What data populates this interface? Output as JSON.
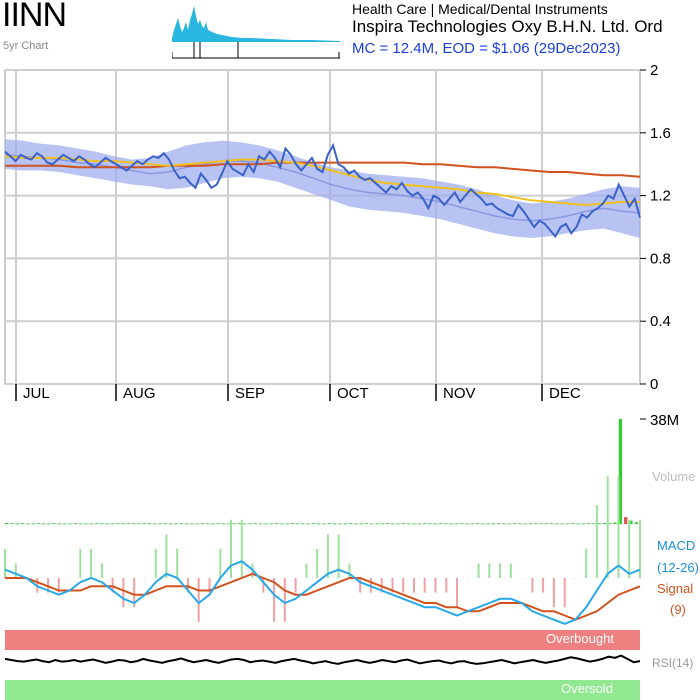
{
  "header": {
    "ticker": "IINN",
    "subtitle": "5yr Chart",
    "sector": "Health Care | Medical/Dental Instruments",
    "company": "Inspira Technologies Oxy B.H.N. Ltd. Ord",
    "mc_line": "MC = 12.4M, EOD = $1.06 (29Dec2023)"
  },
  "colors": {
    "price": "#3a62c8",
    "band_fill": "#9aaaf0",
    "ma_slow": "#d2521e",
    "ma_fast": "#f0c020",
    "ma_mid": "#8a98e0",
    "volume_bar": "#33cc33",
    "volume_down": "#e05050",
    "macd_line": "#27a8e8",
    "signal_line": "#d2521e",
    "hist_up": "#9ee09e",
    "hist_down": "#f0a0a0",
    "overbought": "#ee8080",
    "oversold": "#90e890",
    "rsi": "#000000"
  },
  "chart_data": [
    {
      "type": "line",
      "panel": "price",
      "x_labels": [
        "JUL",
        "AUG",
        "SEP",
        "OCT",
        "NOV",
        "DEC"
      ],
      "y_ticks": [
        "2",
        "1.6",
        "1.2",
        "0.8",
        "0.4",
        "0"
      ],
      "ylim": [
        0,
        2
      ],
      "grid": true,
      "series": [
        {
          "key": "price",
          "values": [
            1.48,
            1.45,
            1.42,
            1.46,
            1.44,
            1.43,
            1.47,
            1.45,
            1.41,
            1.4,
            1.43,
            1.46,
            1.44,
            1.42,
            1.45,
            1.43,
            1.4,
            1.38,
            1.41,
            1.44,
            1.42,
            1.4,
            1.38,
            1.36,
            1.39,
            1.42,
            1.4,
            1.43,
            1.45,
            1.44,
            1.47,
            1.43,
            1.36,
            1.31,
            1.32,
            1.28,
            1.25,
            1.34,
            1.3,
            1.25,
            1.27,
            1.34,
            1.42,
            1.37,
            1.35,
            1.33,
            1.4,
            1.35,
            1.45,
            1.43,
            1.48,
            1.44,
            1.38,
            1.5,
            1.46,
            1.4,
            1.36,
            1.4,
            1.44,
            1.37,
            1.35,
            1.46,
            1.52,
            1.4,
            1.38,
            1.34,
            1.36,
            1.32,
            1.3,
            1.31,
            1.28,
            1.25,
            1.22,
            1.26,
            1.24,
            1.28,
            1.23,
            1.2,
            1.22,
            1.18,
            1.12,
            1.2,
            1.18,
            1.14,
            1.18,
            1.22,
            1.16,
            1.2,
            1.24,
            1.21,
            1.18,
            1.14,
            1.15,
            1.12,
            1.1,
            1.08,
            1.07,
            1.14,
            1.1,
            1.05,
            1.0,
            1.04,
            1.02,
            0.98,
            0.94,
            1.0,
            1.02,
            0.96,
            1.0,
            1.08,
            1.06,
            1.1,
            1.12,
            1.15,
            1.2,
            1.18,
            1.27,
            1.2,
            1.13,
            1.18,
            1.06
          ]
        },
        {
          "key": "ma_slow",
          "values": [
            1.39,
            1.39,
            1.39,
            1.39,
            1.38,
            1.38,
            1.38,
            1.38,
            1.38,
            1.39,
            1.39,
            1.39,
            1.4,
            1.4,
            1.4,
            1.41,
            1.41,
            1.41,
            1.41,
            1.41,
            1.41,
            1.41,
            1.41,
            1.4,
            1.4,
            1.39,
            1.38,
            1.38,
            1.37,
            1.36,
            1.35,
            1.35,
            1.34,
            1.33,
            1.33,
            1.32
          ]
        },
        {
          "key": "ma_fast",
          "values": [
            1.45,
            1.44,
            1.44,
            1.44,
            1.43,
            1.42,
            1.42,
            1.41,
            1.4,
            1.39,
            1.4,
            1.41,
            1.42,
            1.43,
            1.43,
            1.42,
            1.41,
            1.39,
            1.36,
            1.33,
            1.3,
            1.28,
            1.27,
            1.26,
            1.25,
            1.24,
            1.22,
            1.21,
            1.19,
            1.17,
            1.16,
            1.15,
            1.14,
            1.15,
            1.16,
            1.16
          ]
        },
        {
          "key": "ma_mid",
          "values": [
            1.46,
            1.45,
            1.44,
            1.43,
            1.41,
            1.4,
            1.38,
            1.36,
            1.34,
            1.35,
            1.38,
            1.4,
            1.42,
            1.42,
            1.41,
            1.38,
            1.35,
            1.31,
            1.27,
            1.24,
            1.22,
            1.21,
            1.2,
            1.18,
            1.16,
            1.13,
            1.1,
            1.07,
            1.05,
            1.04,
            1.05,
            1.07,
            1.1,
            1.12,
            1.1,
            1.09
          ]
        },
        {
          "key": "band_upper",
          "values": [
            1.56,
            1.55,
            1.53,
            1.52,
            1.5,
            1.48,
            1.45,
            1.43,
            1.44,
            1.48,
            1.52,
            1.54,
            1.55,
            1.54,
            1.52,
            1.49,
            1.45,
            1.41,
            1.38,
            1.36,
            1.34,
            1.33,
            1.32,
            1.31,
            1.29,
            1.27,
            1.24,
            1.2,
            1.17,
            1.15,
            1.16,
            1.18,
            1.21,
            1.24,
            1.26,
            1.25
          ]
        },
        {
          "key": "band_lower",
          "values": [
            1.37,
            1.36,
            1.36,
            1.35,
            1.33,
            1.31,
            1.29,
            1.27,
            1.26,
            1.24,
            1.25,
            1.28,
            1.31,
            1.32,
            1.31,
            1.29,
            1.25,
            1.21,
            1.17,
            1.13,
            1.11,
            1.1,
            1.09,
            1.07,
            1.05,
            1.02,
            0.99,
            0.96,
            0.94,
            0.93,
            0.94,
            0.96,
            0.98,
            0.99,
            0.96,
            0.93
          ]
        }
      ]
    },
    {
      "type": "bar",
      "panel": "volume",
      "y_tick": "38M",
      "side_label": "Volume",
      "ylim": [
        0,
        38
      ],
      "values": [
        0.4,
        0.3,
        0.2,
        0.3,
        0.2,
        0.2,
        0.3,
        0.2,
        0.2,
        0.3,
        0.2,
        0.2,
        0.2,
        0.3,
        0.2,
        0.2,
        0.2,
        0.3,
        0.2,
        0.2,
        0.2,
        0.3,
        0.2,
        0.3,
        0.2,
        0.2,
        0.3,
        0.2,
        0.2,
        0.2,
        0.3,
        0.2,
        0.2,
        0.3,
        0.2,
        0.2,
        0.2,
        0.3,
        0.2,
        0.2,
        0.3,
        0.2,
        0.2,
        0.2,
        0.3,
        0.2,
        0.2,
        0.3,
        0.2,
        0.2,
        0.2,
        0.3,
        0.2,
        0.2,
        0.3,
        0.2,
        0.2,
        0.2,
        0.3,
        0.2,
        0.2,
        0.3,
        0.2,
        0.2,
        0.2,
        0.3,
        0.2,
        0.2,
        0.3,
        0.2,
        0.2,
        0.2,
        0.3,
        0.2,
        0.2,
        0.3,
        0.2,
        0.2,
        0.2,
        0.3,
        0.2,
        0.2,
        0.3,
        0.2,
        0.2,
        0.2,
        0.3,
        0.2,
        0.2,
        0.3,
        0.2,
        0.2,
        0.2,
        0.3,
        0.2,
        0.2,
        0.3,
        0.2,
        0.2,
        0.2,
        0.3,
        0.2,
        0.2,
        0.3,
        0.2,
        0.2,
        0.2,
        0.3,
        0.2,
        0.2,
        0.3,
        0.2,
        0.3,
        0.4,
        0.3,
        0.5,
        38.0,
        2.5,
        1.2,
        0.6
      ]
    },
    {
      "type": "line",
      "panel": "macd",
      "side_labels": [
        "MACD",
        "(12-26)",
        "Signal",
        "(9)"
      ],
      "ylim": [
        -0.12,
        0.12
      ],
      "series": [
        {
          "key": "macd",
          "values": [
            0.02,
            0.01,
            0.0,
            -0.02,
            -0.03,
            -0.04,
            -0.03,
            -0.01,
            0.0,
            -0.01,
            -0.03,
            -0.05,
            -0.06,
            -0.04,
            -0.01,
            0.01,
            0.0,
            -0.03,
            -0.06,
            -0.04,
            0.0,
            0.03,
            0.04,
            0.02,
            -0.01,
            -0.04,
            -0.06,
            -0.05,
            -0.03,
            -0.01,
            0.01,
            0.02,
            0.01,
            -0.01,
            -0.02,
            -0.03,
            -0.04,
            -0.05,
            -0.06,
            -0.07,
            -0.07,
            -0.08,
            -0.09,
            -0.08,
            -0.07,
            -0.06,
            -0.05,
            -0.05,
            -0.06,
            -0.08,
            -0.09,
            -0.1,
            -0.11,
            -0.1,
            -0.07,
            -0.03,
            0.01,
            0.03,
            0.01,
            0.02
          ]
        },
        {
          "key": "signal",
          "values": [
            0.0,
            0.0,
            0.0,
            -0.01,
            -0.02,
            -0.03,
            -0.03,
            -0.03,
            -0.02,
            -0.02,
            -0.02,
            -0.03,
            -0.04,
            -0.04,
            -0.03,
            -0.02,
            -0.02,
            -0.02,
            -0.03,
            -0.03,
            -0.02,
            -0.01,
            0.0,
            0.01,
            0.0,
            -0.01,
            -0.03,
            -0.04,
            -0.04,
            -0.03,
            -0.02,
            -0.01,
            0.0,
            0.0,
            -0.01,
            -0.02,
            -0.03,
            -0.04,
            -0.05,
            -0.06,
            -0.06,
            -0.07,
            -0.07,
            -0.08,
            -0.08,
            -0.07,
            -0.06,
            -0.06,
            -0.06,
            -0.07,
            -0.08,
            -0.08,
            -0.09,
            -0.1,
            -0.09,
            -0.08,
            -0.06,
            -0.04,
            -0.03,
            -0.02
          ]
        }
      ]
    },
    {
      "type": "line",
      "panel": "rsi",
      "band_labels": {
        "overbought": "Overbought",
        "oversold": "Oversold"
      },
      "side_label": "RSI(14)",
      "ylim": [
        0,
        100
      ],
      "values": [
        52,
        50,
        48,
        47,
        49,
        51,
        48,
        46,
        50,
        47,
        48,
        50,
        47,
        49,
        51,
        48,
        45,
        47,
        50,
        49,
        46,
        48,
        52,
        49,
        47,
        45,
        48,
        50,
        53,
        49,
        46,
        48,
        50,
        47,
        45,
        48,
        51,
        52,
        50,
        46,
        48,
        49,
        47,
        45,
        48,
        50,
        52,
        49,
        47,
        44,
        46,
        48,
        45,
        43,
        46,
        48,
        50,
        47,
        45,
        47,
        50,
        48,
        46,
        49,
        51,
        47,
        44,
        46,
        48,
        49,
        46,
        44,
        47,
        48,
        45,
        43,
        44,
        46,
        48,
        50,
        47,
        44,
        46,
        48,
        50,
        47,
        45,
        47,
        49,
        52,
        55,
        53,
        50,
        47,
        49,
        52,
        56,
        54,
        58,
        52,
        46,
        48
      ]
    }
  ]
}
